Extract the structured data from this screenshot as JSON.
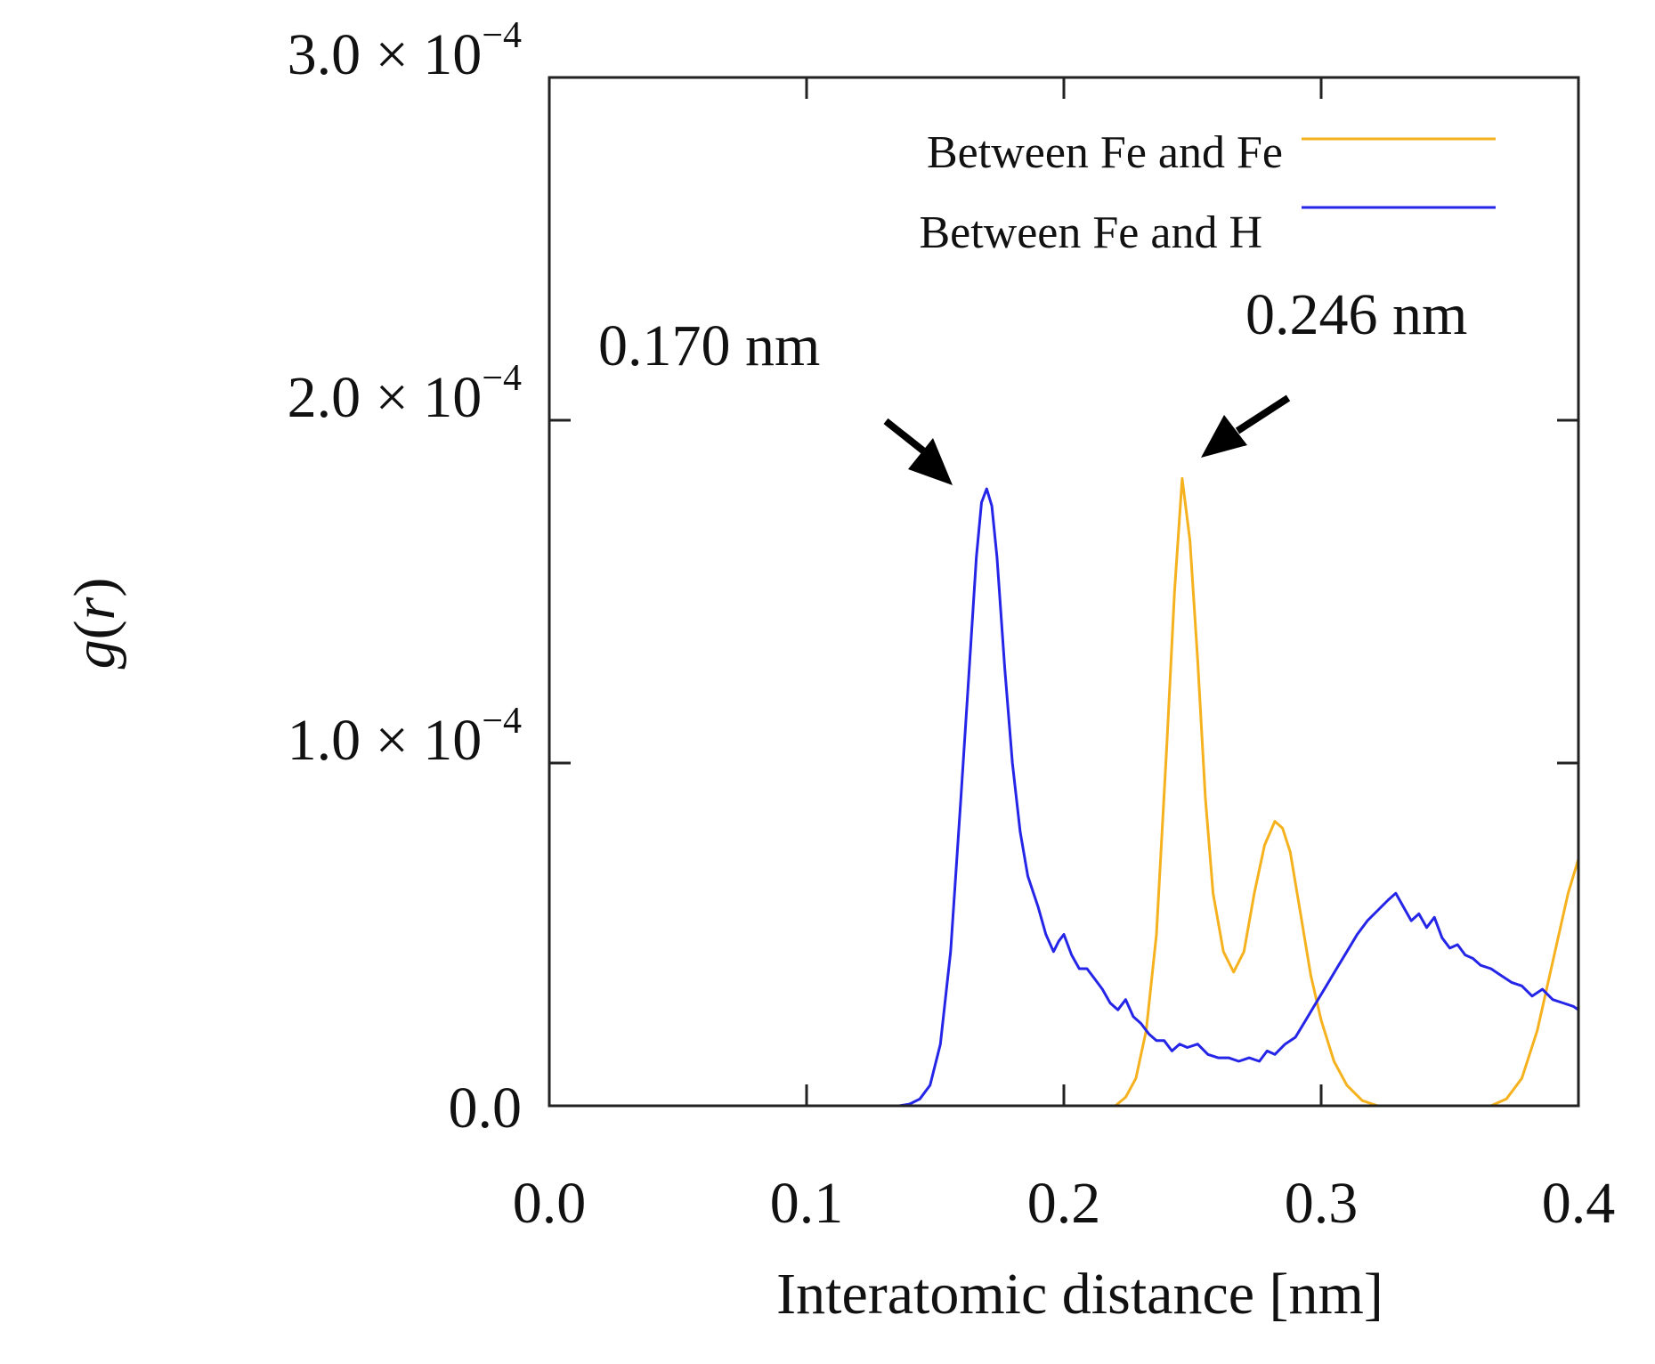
{
  "chart_data": {
    "type": "line",
    "xlabel": "Interatomic distance [nm]",
    "ylabel_letter": "g",
    "ylabel_arg": "r",
    "xlim": [
      0.0,
      0.4
    ],
    "ylim": [
      0.0,
      0.0003
    ],
    "x_ticks": [
      0.0,
      0.1,
      0.2,
      0.3,
      0.4
    ],
    "x_tick_labels": [
      "0.0",
      "0.1",
      "0.2",
      "0.3",
      "0.4"
    ],
    "y_ticks": [
      {
        "value": 0.0,
        "mantissa": "0.0",
        "exponent": ""
      },
      {
        "value": 0.0001,
        "mantissa": "1.0",
        "exponent": "−4"
      },
      {
        "value": 0.0002,
        "mantissa": "2.0",
        "exponent": "−4"
      },
      {
        "value": 0.0003,
        "mantissa": "3.0",
        "exponent": "−4"
      }
    ],
    "y_tick_times": "× 10",
    "legend_position": "top-right",
    "series": [
      {
        "name": "Between Fe and Fe",
        "color": "#F6B21E",
        "points": [
          [
            0.22,
            0.0
          ],
          [
            0.224,
            2.5e-06
          ],
          [
            0.228,
            8e-06
          ],
          [
            0.232,
            2.2e-05
          ],
          [
            0.236,
            5e-05
          ],
          [
            0.24,
            0.000105
          ],
          [
            0.243,
            0.00015
          ],
          [
            0.246,
            0.000183
          ],
          [
            0.249,
            0.000165
          ],
          [
            0.252,
            0.00013
          ],
          [
            0.255,
            9e-05
          ],
          [
            0.258,
            6.2e-05
          ],
          [
            0.262,
            4.5e-05
          ],
          [
            0.266,
            3.9e-05
          ],
          [
            0.27,
            4.5e-05
          ],
          [
            0.274,
            6.2e-05
          ],
          [
            0.278,
            7.6e-05
          ],
          [
            0.282,
            8.3e-05
          ],
          [
            0.285,
            8.1e-05
          ],
          [
            0.288,
            7.4e-05
          ],
          [
            0.292,
            5.6e-05
          ],
          [
            0.296,
            3.8e-05
          ],
          [
            0.3,
            2.5e-05
          ],
          [
            0.305,
            1.3e-05
          ],
          [
            0.31,
            6e-06
          ],
          [
            0.316,
            1.5e-06
          ],
          [
            0.322,
            0.0
          ],
          [
            0.366,
            0.0
          ],
          [
            0.372,
            2e-06
          ],
          [
            0.378,
            8e-06
          ],
          [
            0.384,
            2.2e-05
          ],
          [
            0.39,
            4.2e-05
          ],
          [
            0.396,
            6.2e-05
          ],
          [
            0.4,
            7.2e-05
          ]
        ]
      },
      {
        "name": "Between Fe and H",
        "color": "#2525E8",
        "points": [
          [
            0.136,
            0.0
          ],
          [
            0.14,
            5e-07
          ],
          [
            0.144,
            2e-06
          ],
          [
            0.148,
            6e-06
          ],
          [
            0.152,
            1.8e-05
          ],
          [
            0.156,
            4.5e-05
          ],
          [
            0.16,
            9e-05
          ],
          [
            0.163,
            0.000125
          ],
          [
            0.166,
            0.00016
          ],
          [
            0.168,
            0.000176
          ],
          [
            0.17,
            0.00018
          ],
          [
            0.172,
            0.000175
          ],
          [
            0.174,
            0.00016
          ],
          [
            0.177,
            0.000128
          ],
          [
            0.18,
            0.0001
          ],
          [
            0.183,
            8e-05
          ],
          [
            0.186,
            6.7e-05
          ],
          [
            0.19,
            5.8e-05
          ],
          [
            0.193,
            5e-05
          ],
          [
            0.196,
            4.5e-05
          ],
          [
            0.198,
            4.8e-05
          ],
          [
            0.2,
            5e-05
          ],
          [
            0.203,
            4.4e-05
          ],
          [
            0.206,
            4e-05
          ],
          [
            0.209,
            4e-05
          ],
          [
            0.212,
            3.7e-05
          ],
          [
            0.215,
            3.4e-05
          ],
          [
            0.218,
            3e-05
          ],
          [
            0.221,
            2.8e-05
          ],
          [
            0.224,
            3.1e-05
          ],
          [
            0.227,
            2.6e-05
          ],
          [
            0.23,
            2.4e-05
          ],
          [
            0.233,
            2.1e-05
          ],
          [
            0.236,
            1.9e-05
          ],
          [
            0.239,
            1.9e-05
          ],
          [
            0.242,
            1.6e-05
          ],
          [
            0.245,
            1.8e-05
          ],
          [
            0.248,
            1.7e-05
          ],
          [
            0.252,
            1.8e-05
          ],
          [
            0.256,
            1.5e-05
          ],
          [
            0.26,
            1.4e-05
          ],
          [
            0.264,
            1.4e-05
          ],
          [
            0.268,
            1.3e-05
          ],
          [
            0.272,
            1.4e-05
          ],
          [
            0.276,
            1.3e-05
          ],
          [
            0.279,
            1.6e-05
          ],
          [
            0.282,
            1.5e-05
          ],
          [
            0.286,
            1.8e-05
          ],
          [
            0.29,
            2e-05
          ],
          [
            0.294,
            2.5e-05
          ],
          [
            0.298,
            3e-05
          ],
          [
            0.302,
            3.5e-05
          ],
          [
            0.306,
            4e-05
          ],
          [
            0.31,
            4.5e-05
          ],
          [
            0.314,
            5e-05
          ],
          [
            0.318,
            5.4e-05
          ],
          [
            0.322,
            5.7e-05
          ],
          [
            0.326,
            6e-05
          ],
          [
            0.329,
            6.2e-05
          ],
          [
            0.332,
            5.8e-05
          ],
          [
            0.335,
            5.4e-05
          ],
          [
            0.338,
            5.6e-05
          ],
          [
            0.341,
            5.2e-05
          ],
          [
            0.344,
            5.5e-05
          ],
          [
            0.347,
            4.9e-05
          ],
          [
            0.35,
            4.6e-05
          ],
          [
            0.353,
            4.7e-05
          ],
          [
            0.356,
            4.4e-05
          ],
          [
            0.359,
            4.3e-05
          ],
          [
            0.362,
            4.1e-05
          ],
          [
            0.366,
            4e-05
          ],
          [
            0.37,
            3.8e-05
          ],
          [
            0.374,
            3.6e-05
          ],
          [
            0.378,
            3.5e-05
          ],
          [
            0.382,
            3.2e-05
          ],
          [
            0.386,
            3.4e-05
          ],
          [
            0.39,
            3.1e-05
          ],
          [
            0.394,
            3e-05
          ],
          [
            0.398,
            2.9e-05
          ],
          [
            0.4,
            2.8e-05
          ]
        ]
      }
    ],
    "annotations": [
      {
        "label": "0.170 nm",
        "x": 0.17,
        "y": 0.00018
      },
      {
        "label": "0.246 nm",
        "x": 0.246,
        "y": 0.000183
      }
    ]
  }
}
